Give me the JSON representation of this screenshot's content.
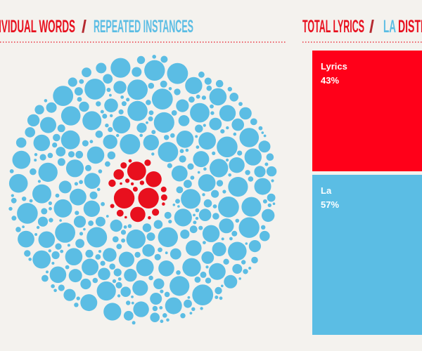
{
  "titles": {
    "left": {
      "first": "INDIVIDUAL WORDS",
      "separator": "/",
      "second": "REPEATED INSTANCES"
    },
    "right": {
      "first": "TOTAL LYRICS",
      "separator": "/",
      "second": "LA",
      "third": "DISTRIBUTION"
    }
  },
  "chart_data": {
    "type": "stacked_bar",
    "categories": [
      "Lyrics",
      "La"
    ],
    "values": [
      43,
      57
    ],
    "value_labels": [
      "43%",
      "57%"
    ],
    "colors": [
      "#ff0019",
      "#5bbde4"
    ]
  }
}
